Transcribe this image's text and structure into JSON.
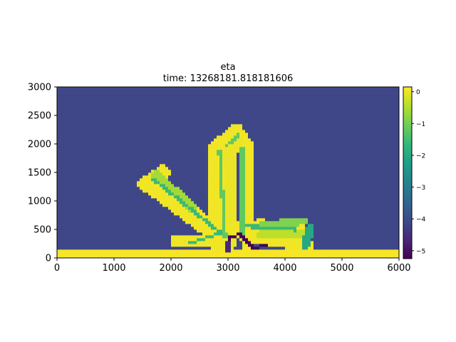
{
  "chart_data": {
    "type": "heatmap",
    "title": "eta",
    "subtitle": "time: 13268181.818181606",
    "xlabel": "",
    "ylabel": "",
    "xlim": [
      0,
      6000
    ],
    "ylim": [
      0,
      3000
    ],
    "x_ticks": [
      0,
      1000,
      2000,
      3000,
      4000,
      5000,
      6000
    ],
    "y_ticks": [
      0,
      500,
      1000,
      1500,
      2000,
      2500,
      3000
    ],
    "colormap": "viridis",
    "colorbar": {
      "range": [
        -5.25,
        0.15
      ],
      "ticks": [
        0,
        -1,
        -2,
        -3,
        -4,
        -5
      ],
      "tick_labels": [
        "0",
        "−1",
        "−2",
        "−3",
        "−4",
        "−5"
      ]
    },
    "grid": false,
    "background_value": -4.1,
    "cell_size": 50,
    "regions": [
      {
        "kind": "rect",
        "x0": 0,
        "x1": 6000,
        "y0": 0,
        "y1": 150,
        "value": 0.1
      },
      {
        "kind": "band",
        "x0": 1550,
        "y0": 1300,
        "x1": 1850,
        "y1": 1500,
        "width": 260,
        "value": 0.05
      },
      {
        "kind": "band",
        "x0": 1650,
        "y0": 1300,
        "x1": 2950,
        "y1": 320,
        "width": 330,
        "value": 0.05
      },
      {
        "kind": "band",
        "x0": 1750,
        "y0": 1450,
        "x1": 2350,
        "y1": 900,
        "width": 180,
        "value": -0.6
      },
      {
        "kind": "band",
        "x0": 2800,
        "y0": 250,
        "x1": 2800,
        "y1": 1950,
        "width": 260,
        "value": 0.05
      },
      {
        "kind": "band",
        "x0": 3350,
        "y0": 250,
        "x1": 3330,
        "y1": 1950,
        "width": 240,
        "value": 0.05
      },
      {
        "kind": "band",
        "x0": 2820,
        "y0": 1950,
        "x1": 3150,
        "y1": 2210,
        "width": 280,
        "value": 0.05
      },
      {
        "kind": "band",
        "x0": 3150,
        "y0": 2210,
        "x1": 3320,
        "y1": 1950,
        "width": 260,
        "value": 0.05
      },
      {
        "kind": "band",
        "x0": 3050,
        "y0": 250,
        "x1": 3050,
        "y1": 1750,
        "width": 180,
        "value": 0.0
      },
      {
        "kind": "band",
        "x0": 2950,
        "y0": 1750,
        "x1": 3200,
        "y1": 2000,
        "width": 180,
        "value": 0.0
      },
      {
        "kind": "band",
        "x0": 3150,
        "y0": 500,
        "x1": 3600,
        "y1": 560,
        "width": 260,
        "value": 0.05
      },
      {
        "kind": "band",
        "x0": 3400,
        "y0": 540,
        "x1": 4250,
        "y1": 560,
        "width": 240,
        "value": 0.05
      },
      {
        "kind": "band",
        "x0": 3300,
        "y0": 360,
        "x1": 4400,
        "y1": 230,
        "width": 200,
        "value": 0.05
      },
      {
        "kind": "band",
        "x0": 2100,
        "y0": 300,
        "x1": 2900,
        "y1": 300,
        "width": 230,
        "value": 0.05
      },
      {
        "kind": "band",
        "x0": 3550,
        "y0": 400,
        "x1": 4350,
        "y1": 430,
        "width": 150,
        "value": -0.4
      },
      {
        "kind": "band",
        "x0": 3600,
        "y0": 600,
        "x1": 4350,
        "y1": 640,
        "width": 120,
        "value": -0.9
      },
      {
        "kind": "band",
        "x0": 4350,
        "y0": 200,
        "x1": 4450,
        "y1": 550,
        "width": 150,
        "value": -2.0
      },
      {
        "kind": "band",
        "x0": 1700,
        "y0": 1380,
        "x1": 2950,
        "y1": 380,
        "width": 60,
        "value": -1.6
      },
      {
        "kind": "band",
        "x0": 2300,
        "y0": 250,
        "x1": 2900,
        "y1": 450,
        "width": 60,
        "value": -1.6
      },
      {
        "kind": "band",
        "x0": 3350,
        "y0": 560,
        "x1": 4200,
        "y1": 500,
        "width": 60,
        "value": -1.6
      },
      {
        "kind": "band",
        "x0": 2950,
        "y0": 380,
        "x1": 2850,
        "y1": 1900,
        "width": 60,
        "value": -1.2
      },
      {
        "kind": "band",
        "x0": 3250,
        "y0": 400,
        "x1": 3250,
        "y1": 1950,
        "width": 60,
        "value": -1.2
      },
      {
        "kind": "band",
        "x0": 2950,
        "y0": 1950,
        "x1": 3180,
        "y1": 2150,
        "width": 60,
        "value": -1.2
      },
      {
        "kind": "band",
        "x0": 3000,
        "y0": 180,
        "x1": 3020,
        "y1": 360,
        "width": 50,
        "value": -5.2
      },
      {
        "kind": "band",
        "x0": 3020,
        "y0": 360,
        "x1": 3230,
        "y1": 420,
        "width": 50,
        "value": -5.2
      },
      {
        "kind": "band",
        "x0": 3230,
        "y0": 400,
        "x1": 3450,
        "y1": 180,
        "width": 50,
        "value": -5.2
      },
      {
        "kind": "band",
        "x0": 3450,
        "y0": 180,
        "x1": 3700,
        "y1": 230,
        "width": 50,
        "value": -5.2
      },
      {
        "kind": "band",
        "x0": 3000,
        "y0": 150,
        "x1": 3000,
        "y1": 250,
        "width": 90,
        "value": -4.6
      }
    ]
  }
}
